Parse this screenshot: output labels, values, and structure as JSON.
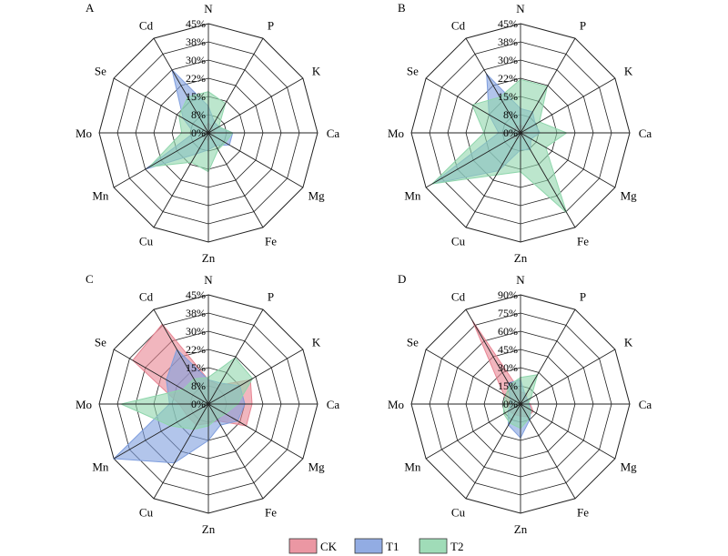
{
  "legend": [
    {
      "name": "CK",
      "color": "#e88593"
    },
    {
      "name": "T1",
      "color": "#7f9ede"
    },
    {
      "name": "T2",
      "color": "#8fd6ac"
    }
  ],
  "chart_data": [
    {
      "type": "radar",
      "panel_label": "A",
      "axes": [
        "N",
        "P",
        "K",
        "Ca",
        "Mg",
        "Fe",
        "Zn",
        "Cu",
        "Mn",
        "Mo",
        "Se",
        "Cd"
      ],
      "tick_labels": [
        "0%",
        "8%",
        "15%",
        "22%",
        "30%",
        "38%",
        "45%"
      ],
      "rmax": 45,
      "series": [
        {
          "name": "CK",
          "values": [
            4,
            3,
            2,
            3,
            2,
            2,
            3,
            3,
            3,
            2,
            2,
            3
          ]
        },
        {
          "name": "T1",
          "values": [
            11,
            5,
            5,
            10,
            10,
            6,
            7,
            10,
            30,
            6,
            12,
            30
          ]
        },
        {
          "name": "T2",
          "values": [
            17,
            14,
            5,
            10,
            8,
            8,
            16,
            14,
            28,
            11,
            14,
            17
          ]
        }
      ]
    },
    {
      "type": "radar",
      "panel_label": "B",
      "axes": [
        "N",
        "P",
        "K",
        "Ca",
        "Mg",
        "Fe",
        "Zn",
        "Cu",
        "Mn",
        "Mo",
        "Se",
        "Cd"
      ],
      "tick_labels": [
        "0%",
        "8%",
        "15%",
        "22%",
        "30%",
        "38%",
        "45%"
      ],
      "rmax": 45,
      "series": [
        {
          "name": "CK",
          "values": [
            3,
            3,
            2,
            3,
            2,
            2,
            2,
            3,
            4,
            8,
            3,
            3
          ]
        },
        {
          "name": "T1",
          "values": [
            10,
            10,
            7,
            8,
            5,
            8,
            7,
            18,
            42,
            9,
            15,
            28
          ]
        },
        {
          "name": "T2",
          "values": [
            22,
            22,
            9,
            19,
            12,
            38,
            16,
            20,
            42,
            15,
            23,
            17
          ]
        }
      ]
    },
    {
      "type": "radar",
      "panel_label": "C",
      "axes": [
        "N",
        "P",
        "K",
        "Ca",
        "Mg",
        "Fe",
        "Zn",
        "Cu",
        "Mn",
        "Mo",
        "Se",
        "Cd"
      ],
      "tick_labels": [
        "0%",
        "8%",
        "15%",
        "22%",
        "30%",
        "38%",
        "45%"
      ],
      "rmax": 45,
      "series": [
        {
          "name": "CK",
          "values": [
            10,
            9,
            20,
            18,
            18,
            8,
            8,
            10,
            10,
            12,
            36,
            38
          ]
        },
        {
          "name": "T1",
          "values": [
            10,
            10,
            15,
            15,
            14,
            10,
            15,
            28,
            45,
            16,
            20,
            26
          ]
        },
        {
          "name": "T2",
          "values": [
            11,
            22,
            21,
            12,
            8,
            7,
            9,
            12,
            18,
            36,
            12,
            12
          ]
        }
      ]
    },
    {
      "type": "radar",
      "panel_label": "D",
      "axes": [
        "N",
        "P",
        "K",
        "Ca",
        "Mg",
        "Fe",
        "Zn",
        "Cu",
        "Mn",
        "Mo",
        "Se",
        "Cd"
      ],
      "tick_labels": [
        "0%",
        "15%",
        "30%",
        "45%",
        "60%",
        "75%",
        "90%"
      ],
      "rmax": 90,
      "series": [
        {
          "name": "CK",
          "values": [
            10,
            10,
            6,
            8,
            12,
            12,
            10,
            10,
            11,
            10,
            16,
            80
          ]
        },
        {
          "name": "T1",
          "values": [
            20,
            8,
            7,
            7,
            10,
            15,
            28,
            20,
            12,
            8,
            10,
            20
          ]
        },
        {
          "name": "T2",
          "values": [
            22,
            28,
            10,
            6,
            10,
            14,
            20,
            18,
            16,
            14,
            14,
            18
          ]
        }
      ]
    }
  ]
}
